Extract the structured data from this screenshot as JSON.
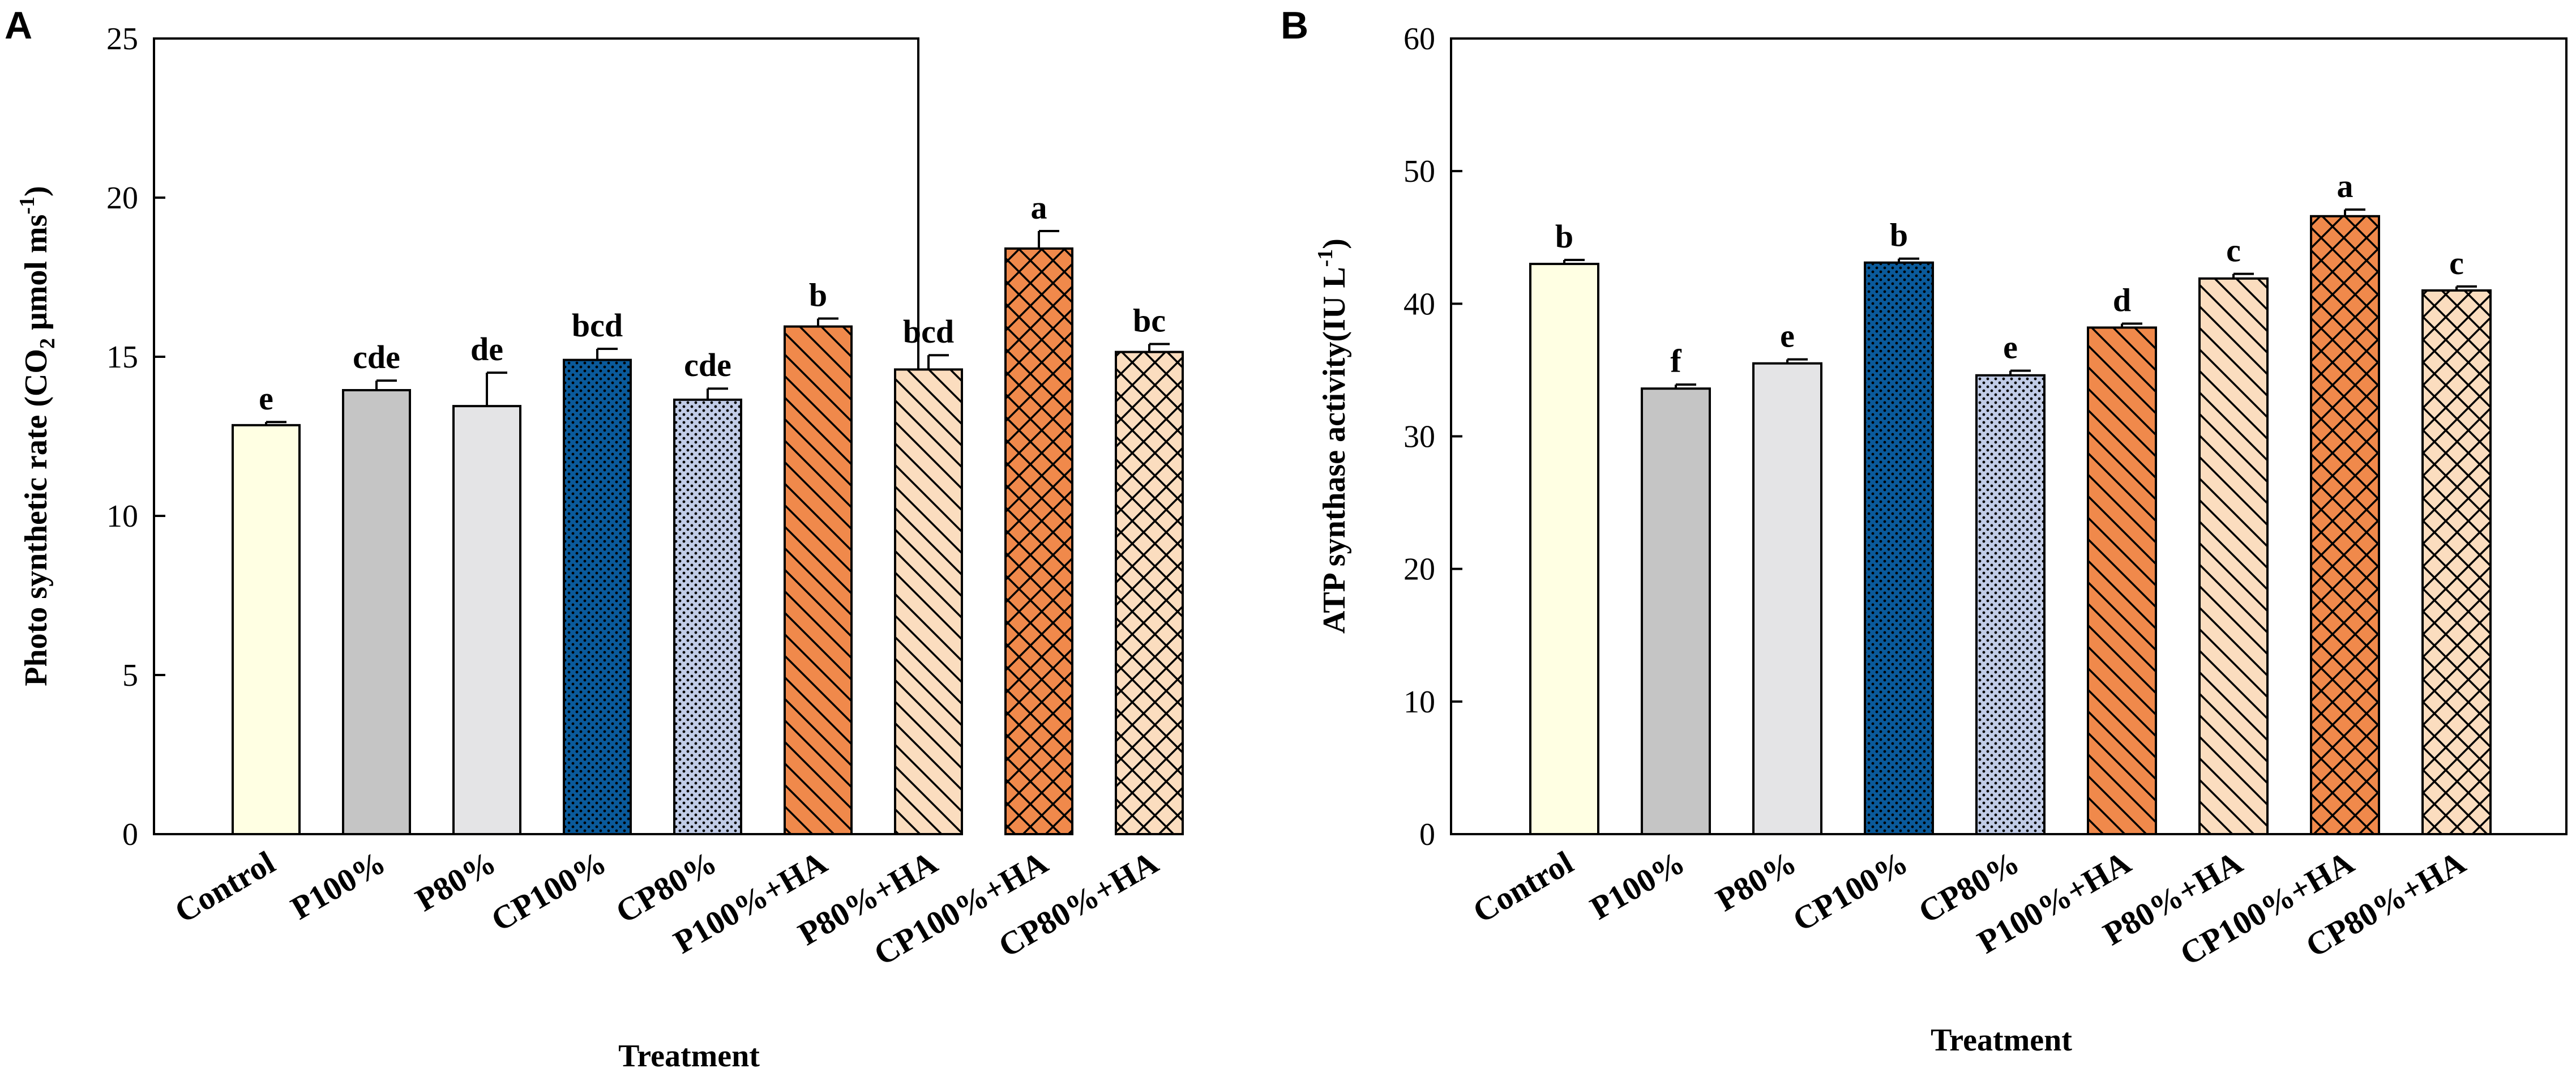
{
  "chart_data": [
    {
      "panel_label": "A",
      "type": "bar",
      "title": "",
      "xlabel": "Treatment",
      "ylabel_main": "Photo synthetic rate (CO",
      "ylabel_sub": "2",
      "ylabel_mid": " μmol ms",
      "ylabel_sup": "-1",
      "ylabel_end": ")",
      "ylim": [
        0,
        25
      ],
      "yticks": [
        "0",
        "5",
        "10",
        "15",
        "20",
        "25"
      ],
      "grid": false,
      "categories": [
        "Control",
        "P100%",
        "P80%",
        "CP100%",
        "CP80%",
        "P100%+HA",
        "P80%+HA",
        "CP100%+HA",
        "CP80%+HA"
      ],
      "values": [
        12.85,
        13.95,
        13.45,
        14.9,
        13.65,
        15.95,
        14.6,
        18.4,
        15.15
      ],
      "errors": [
        0.1,
        0.3,
        1.05,
        0.35,
        0.35,
        0.25,
        0.45,
        0.55,
        0.25
      ],
      "significance": [
        "e",
        "cde",
        "de",
        "bcd",
        "cde",
        "b",
        "bcd",
        "a",
        "bc"
      ]
    },
    {
      "panel_label": "B",
      "type": "bar",
      "title": "",
      "xlabel": "Treatment",
      "ylabel_main": "ATP synthase activity(IU L",
      "ylabel_sup": "-1",
      "ylabel_end": ")",
      "ylim": [
        0,
        60
      ],
      "yticks": [
        "0",
        "10",
        "20",
        "30",
        "40",
        "50",
        "60"
      ],
      "grid": false,
      "categories": [
        "Control",
        "P100%",
        "P80%",
        "CP100%",
        "CP80%",
        "P100%+HA",
        "P80%+HA",
        "CP100%+HA",
        "CP80%+HA"
      ],
      "values": [
        43.0,
        33.6,
        35.5,
        43.1,
        34.6,
        38.2,
        41.9,
        46.6,
        41.0
      ],
      "errors": [
        0.3,
        0.3,
        0.3,
        0.3,
        0.35,
        0.3,
        0.35,
        0.5,
        0.3
      ],
      "significance": [
        "b",
        "f",
        "e",
        "b",
        "e",
        "d",
        "c",
        "a",
        "c"
      ]
    }
  ],
  "bar_styles": [
    {
      "fill": "#FFFFE3",
      "pattern": "none"
    },
    {
      "fill": "#C5C5C5",
      "pattern": "none"
    },
    {
      "fill": "#E4E4E6",
      "pattern": "none"
    },
    {
      "fill": "#0A5A9B",
      "pattern": "dots"
    },
    {
      "fill": "#C1CCE7",
      "pattern": "dots"
    },
    {
      "fill": "#F0894B",
      "pattern": "diag"
    },
    {
      "fill": "#FBDDBF",
      "pattern": "diag"
    },
    {
      "fill": "#F0894B",
      "pattern": "cross"
    },
    {
      "fill": "#FBDDBF",
      "pattern": "cross"
    }
  ]
}
